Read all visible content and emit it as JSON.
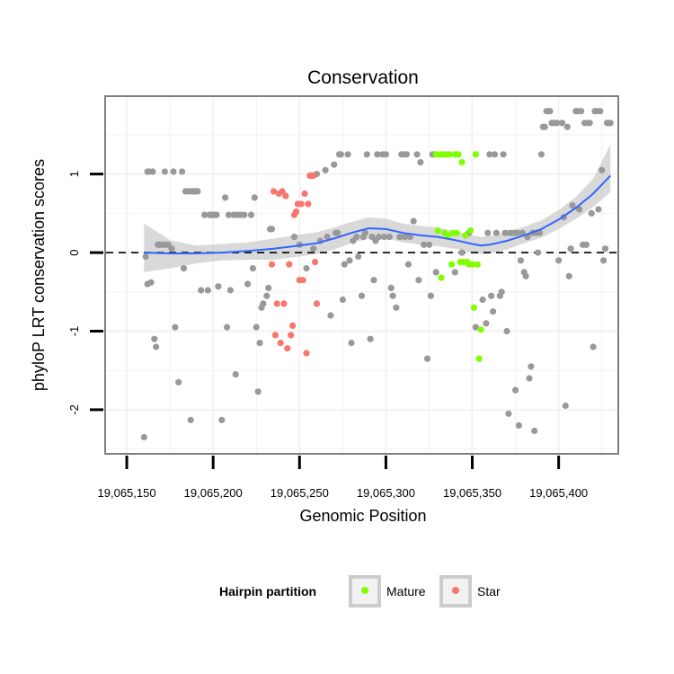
{
  "chart_data": {
    "type": "scatter",
    "title": "Conservation",
    "xlabel": "Genomic Position",
    "ylabel": "phyloP LRT conservation scores",
    "xlim": [
      19065138,
      19065434
    ],
    "ylim": [
      -2.55,
      1.98
    ],
    "x_ticks": [
      19065150,
      19065200,
      19065250,
      19065300,
      19065350,
      19065400
    ],
    "x_tick_labels": [
      "19,065,150",
      "19,065,200",
      "19,065,250",
      "19,065,300",
      "19,065,350",
      "19,065,400"
    ],
    "y_ticks": [
      1,
      0,
      -1,
      -2
    ],
    "y_tick_labels": [
      "1",
      "0",
      "-1",
      "-2"
    ],
    "reference_line": 0,
    "legend": {
      "title": "Hairpin partition",
      "entries": [
        {
          "label": "Mature",
          "color": "#7fff00"
        },
        {
          "label": "Star",
          "color": "#f8766d"
        }
      ]
    },
    "colors": {
      "other": "#999999",
      "mature": "#7fff00",
      "star": "#f8766d",
      "smooth": "#3366ff",
      "band": "#cccccc"
    },
    "series": [
      {
        "name": "Other",
        "points": [
          [
            19065160,
            -2.35
          ],
          [
            19065161,
            -0.05
          ],
          [
            19065162,
            1.03
          ],
          [
            19065162,
            -0.4
          ],
          [
            19065163,
            1.03
          ],
          [
            19065164,
            -0.38
          ],
          [
            19065165,
            1.03
          ],
          [
            19065166,
            -1.1
          ],
          [
            19065167,
            -1.2
          ],
          [
            19065168,
            0.1
          ],
          [
            19065169,
            0.1
          ],
          [
            19065171,
            0.1
          ],
          [
            19065172,
            1.03
          ],
          [
            19065173,
            0.1
          ],
          [
            19065174,
            0.1
          ],
          [
            19065176,
            0.05
          ],
          [
            19065177,
            1.03
          ],
          [
            19065178,
            -0.95
          ],
          [
            19065180,
            -1.65
          ],
          [
            19065182,
            1.03
          ],
          [
            19065183,
            -0.2
          ],
          [
            19065184,
            0.78
          ],
          [
            19065186,
            0.78
          ],
          [
            19065187,
            -2.13
          ],
          [
            19065188,
            0.78
          ],
          [
            19065189,
            0.78
          ],
          [
            19065190,
            0.78
          ],
          [
            19065191,
            0.78
          ],
          [
            19065193,
            -0.48
          ],
          [
            19065195,
            0.48
          ],
          [
            19065197,
            -0.48
          ],
          [
            19065198,
            0.48
          ],
          [
            19065199,
            0.48
          ],
          [
            19065200,
            0.48
          ],
          [
            19065201,
            0.48
          ],
          [
            19065202,
            0.48
          ],
          [
            19065203,
            -0.43
          ],
          [
            19065205,
            -2.13
          ],
          [
            19065207,
            0.7
          ],
          [
            19065208,
            -0.95
          ],
          [
            19065209,
            0.48
          ],
          [
            19065210,
            -0.48
          ],
          [
            19065212,
            0.48
          ],
          [
            19065213,
            -1.55
          ],
          [
            19065214,
            0.48
          ],
          [
            19065216,
            0.48
          ],
          [
            19065218,
            0.48
          ],
          [
            19065220,
            -0.4
          ],
          [
            19065222,
            0.48
          ],
          [
            19065223,
            -0.2
          ],
          [
            19065224,
            0.7
          ],
          [
            19065225,
            -0.95
          ],
          [
            19065226,
            -1.77
          ],
          [
            19065227,
            -1.15
          ],
          [
            19065228,
            -0.7
          ],
          [
            19065229,
            -0.65
          ],
          [
            19065231,
            -0.55
          ],
          [
            19065232,
            -0.45
          ],
          [
            19065233,
            0.3
          ],
          [
            19065234,
            0.3
          ],
          [
            19065247,
            0.2
          ],
          [
            19065250,
            0.1
          ],
          [
            19065254,
            -0.2
          ],
          [
            19065258,
            0.05
          ],
          [
            19065260,
            1.0
          ],
          [
            19065262,
            0.15
          ],
          [
            19065265,
            1.05
          ],
          [
            19065266,
            0.2
          ],
          [
            19065268,
            -0.8
          ],
          [
            19065270,
            1.12
          ],
          [
            19065271,
            0.25
          ],
          [
            19065272,
            0.25
          ],
          [
            19065273,
            1.25
          ],
          [
            19065274,
            1.25
          ],
          [
            19065275,
            -0.6
          ],
          [
            19065276,
            -0.15
          ],
          [
            19065278,
            1.25
          ],
          [
            19065279,
            -0.1
          ],
          [
            19065280,
            -1.15
          ],
          [
            19065281,
            0.15
          ],
          [
            19065283,
            0.2
          ],
          [
            19065284,
            -0.05
          ],
          [
            19065286,
            -0.55
          ],
          [
            19065287,
            0.2
          ],
          [
            19065288,
            0.25
          ],
          [
            19065289,
            1.25
          ],
          [
            19065291,
            -1.1
          ],
          [
            19065292,
            0.2
          ],
          [
            19065293,
            -0.35
          ],
          [
            19065294,
            0.15
          ],
          [
            19065295,
            1.25
          ],
          [
            19065296,
            0.2
          ],
          [
            19065298,
            1.25
          ],
          [
            19065299,
            0.2
          ],
          [
            19065300,
            1.25
          ],
          [
            19065302,
            0.2
          ],
          [
            19065303,
            -0.45
          ],
          [
            19065304,
            -0.55
          ],
          [
            19065306,
            -0.7
          ],
          [
            19065308,
            0.2
          ],
          [
            19065309,
            1.25
          ],
          [
            19065310,
            1.25
          ],
          [
            19065311,
            0.2
          ],
          [
            19065312,
            1.25
          ],
          [
            19065313,
            -0.15
          ],
          [
            19065314,
            0.2
          ],
          [
            19065316,
            0.4
          ],
          [
            19065318,
            1.25
          ],
          [
            19065319,
            -0.35
          ],
          [
            19065320,
            1.15
          ],
          [
            19065322,
            0.1
          ],
          [
            19065324,
            -1.35
          ],
          [
            19065325,
            0.1
          ],
          [
            19065326,
            -0.55
          ],
          [
            19065327,
            1.25
          ],
          [
            19065328,
            1.25
          ],
          [
            19065329,
            -0.25
          ],
          [
            19065340,
            -0.25
          ],
          [
            19065344,
            0.0
          ],
          [
            19065348,
            0.25
          ],
          [
            19065352,
            -0.95
          ],
          [
            19065356,
            -0.6
          ],
          [
            19065358,
            -0.9
          ],
          [
            19065359,
            0.25
          ],
          [
            19065360,
            1.25
          ],
          [
            19065361,
            -0.55
          ],
          [
            19065362,
            -0.75
          ],
          [
            19065363,
            1.25
          ],
          [
            19065364,
            0.25
          ],
          [
            19065366,
            -0.55
          ],
          [
            19065367,
            -0.5
          ],
          [
            19065368,
            1.25
          ],
          [
            19065369,
            0.25
          ],
          [
            19065370,
            -1.0
          ],
          [
            19065371,
            -2.05
          ],
          [
            19065372,
            0.25
          ],
          [
            19065374,
            0.25
          ],
          [
            19065375,
            -1.75
          ],
          [
            19065376,
            0.25
          ],
          [
            19065377,
            -2.2
          ],
          [
            19065378,
            -0.1
          ],
          [
            19065379,
            0.25
          ],
          [
            19065380,
            -0.25
          ],
          [
            19065381,
            -0.3
          ],
          [
            19065382,
            0.2
          ],
          [
            19065383,
            -1.6
          ],
          [
            19065384,
            -1.45
          ],
          [
            19065385,
            0.25
          ],
          [
            19065386,
            -2.27
          ],
          [
            19065387,
            0.25
          ],
          [
            19065388,
            0.0
          ],
          [
            19065389,
            0.25
          ],
          [
            19065390,
            1.25
          ],
          [
            19065391,
            1.6
          ],
          [
            19065392,
            1.6
          ],
          [
            19065393,
            1.8
          ],
          [
            19065394,
            1.8
          ],
          [
            19065395,
            1.8
          ],
          [
            19065396,
            1.65
          ],
          [
            19065397,
            1.65
          ],
          [
            19065398,
            1.65
          ],
          [
            19065399,
            1.65
          ],
          [
            19065400,
            -0.1
          ],
          [
            19065402,
            1.65
          ],
          [
            19065403,
            0.45
          ],
          [
            19065404,
            -1.95
          ],
          [
            19065405,
            1.6
          ],
          [
            19065406,
            -0.3
          ],
          [
            19065407,
            0.05
          ],
          [
            19065408,
            0.6
          ],
          [
            19065410,
            1.8
          ],
          [
            19065411,
            1.8
          ],
          [
            19065412,
            0.55
          ],
          [
            19065413,
            1.8
          ],
          [
            19065414,
            0.1
          ],
          [
            19065415,
            1.65
          ],
          [
            19065416,
            0.1
          ],
          [
            19065417,
            1.65
          ],
          [
            19065418,
            1.65
          ],
          [
            19065419,
            0.5
          ],
          [
            19065420,
            -1.2
          ],
          [
            19065421,
            1.8
          ],
          [
            19065422,
            1.8
          ],
          [
            19065423,
            0.55
          ],
          [
            19065424,
            1.8
          ],
          [
            19065425,
            1.05
          ],
          [
            19065426,
            -0.1
          ],
          [
            19065427,
            0.05
          ],
          [
            19065428,
            1.65
          ],
          [
            19065429,
            1.65
          ],
          [
            19065430,
            1.65
          ]
        ]
      },
      {
        "name": "Mature",
        "points": [
          [
            19065329,
            1.25
          ],
          [
            19065330,
            0.28
          ],
          [
            19065331,
            1.25
          ],
          [
            19065332,
            -0.32
          ],
          [
            19065333,
            1.25
          ],
          [
            19065334,
            0.25
          ],
          [
            19065335,
            1.25
          ],
          [
            19065336,
            0.22
          ],
          [
            19065337,
            1.25
          ],
          [
            19065338,
            -0.15
          ],
          [
            19065339,
            0.25
          ],
          [
            19065340,
            1.25
          ],
          [
            19065341,
            0.25
          ],
          [
            19065342,
            1.25
          ],
          [
            19065343,
            -0.12
          ],
          [
            19065344,
            1.15
          ],
          [
            19065345,
            -0.12
          ],
          [
            19065346,
            0.22
          ],
          [
            19065347,
            -0.12
          ],
          [
            19065348,
            -0.15
          ],
          [
            19065349,
            0.28
          ],
          [
            19065350,
            -0.15
          ],
          [
            19065351,
            -0.7
          ],
          [
            19065352,
            1.25
          ],
          [
            19065353,
            -0.15
          ],
          [
            19065354,
            -1.35
          ],
          [
            19065355,
            -0.98
          ]
        ]
      },
      {
        "name": "Star",
        "points": [
          [
            19065234,
            -0.15
          ],
          [
            19065235,
            0.78
          ],
          [
            19065236,
            -1.05
          ],
          [
            19065237,
            -0.65
          ],
          [
            19065238,
            0.75
          ],
          [
            19065239,
            -1.15
          ],
          [
            19065240,
            0.78
          ],
          [
            19065241,
            -0.65
          ],
          [
            19065242,
            0.72
          ],
          [
            19065243,
            -1.22
          ],
          [
            19065244,
            -0.15
          ],
          [
            19065245,
            -1.05
          ],
          [
            19065246,
            -0.93
          ],
          [
            19065247,
            0.48
          ],
          [
            19065248,
            0.52
          ],
          [
            19065249,
            0.62
          ],
          [
            19065250,
            -0.35
          ],
          [
            19065251,
            0.62
          ],
          [
            19065252,
            -0.35
          ],
          [
            19065253,
            0.75
          ],
          [
            19065254,
            -1.28
          ],
          [
            19065255,
            0.62
          ],
          [
            19065256,
            0.98
          ],
          [
            19065257,
            0.98
          ],
          [
            19065258,
            0.98
          ],
          [
            19065259,
            -0.12
          ],
          [
            19065260,
            -0.65
          ]
        ]
      }
    ],
    "smooth_line": {
      "x": [
        19065160,
        19065175,
        19065190,
        19065205,
        19065220,
        19065235,
        19065250,
        19065260,
        19065270,
        19065280,
        19065290,
        19065300,
        19065310,
        19065320,
        19065330,
        19065340,
        19065350,
        19065355,
        19065360,
        19065370,
        19065380,
        19065390,
        19065400,
        19065410,
        19065420,
        19065430
      ],
      "y": [
        0.0,
        -0.01,
        -0.01,
        0.0,
        0.02,
        0.05,
        0.09,
        0.12,
        0.18,
        0.25,
        0.31,
        0.3,
        0.25,
        0.22,
        0.2,
        0.16,
        0.11,
        0.09,
        0.1,
        0.15,
        0.22,
        0.3,
        0.42,
        0.57,
        0.75,
        0.98
      ],
      "lower": [
        -0.25,
        -0.2,
        -0.14,
        -0.1,
        -0.09,
        -0.09,
        -0.05,
        -0.02,
        0.04,
        0.12,
        0.18,
        0.18,
        0.13,
        0.1,
        0.08,
        0.05,
        0.0,
        -0.02,
        -0.01,
        0.04,
        0.12,
        0.19,
        0.3,
        0.43,
        0.58,
        0.77
      ],
      "upper": [
        0.37,
        0.16,
        0.09,
        0.11,
        0.13,
        0.18,
        0.23,
        0.26,
        0.32,
        0.39,
        0.45,
        0.43,
        0.37,
        0.34,
        0.32,
        0.27,
        0.22,
        0.2,
        0.21,
        0.26,
        0.33,
        0.41,
        0.54,
        0.71,
        0.94,
        1.38
      ]
    }
  }
}
